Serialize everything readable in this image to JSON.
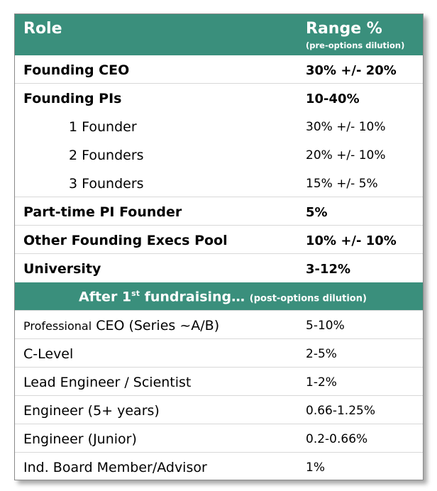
{
  "header": {
    "role": "Role",
    "range": "Range %",
    "range_sub": "(pre-options dilution)"
  },
  "founders": [
    {
      "role": "Founding CEO",
      "range": "30% +/- 20%"
    },
    {
      "role": "Founding PIs",
      "range": "10-40%"
    },
    {
      "role": "1 Founder",
      "range": "30% +/- 10%"
    },
    {
      "role": "2 Founders",
      "range": "20% +/- 10%"
    },
    {
      "role": "3 Founders",
      "range": "15% +/- 5%"
    },
    {
      "role": "Part-time PI Founder",
      "range": "5%"
    },
    {
      "role": "Other Founding Execs Pool",
      "range": "10% +/- 10%"
    },
    {
      "role": "University",
      "range": "3-12%"
    }
  ],
  "section": {
    "title_a": "After 1",
    "title_sup": "st",
    "title_b": " fundraising…",
    "note": "(post-options dilution)"
  },
  "after": [
    {
      "role_prefix": "Professional",
      "role": " CEO (Series ~A/B)",
      "range": "5-10%"
    },
    {
      "role": "C-Level",
      "range": "2-5%"
    },
    {
      "role": "Lead Engineer / Scientist",
      "range": "1-2%"
    },
    {
      "role": "Engineer (5+ years)",
      "range": "0.66-1.25%"
    },
    {
      "role": "Engineer (Junior)",
      "range": "0.2-0.66%"
    },
    {
      "role": "Ind. Board Member/Advisor",
      "range": "1%"
    }
  ]
}
